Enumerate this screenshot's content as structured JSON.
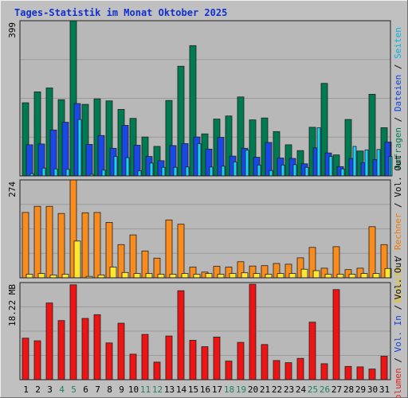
{
  "chart_data": {
    "type": "bar",
    "title": "Tages-Statistik im Monat Oktober 2025",
    "categories": [
      "1",
      "2",
      "3",
      "4",
      "5",
      "6",
      "7",
      "8",
      "9",
      "10",
      "11",
      "12",
      "13",
      "14",
      "15",
      "16",
      "17",
      "18",
      "19",
      "20",
      "21",
      "22",
      "23",
      "24",
      "25",
      "26",
      "27",
      "28",
      "29",
      "30",
      "31"
    ],
    "weekend_days": [
      4,
      5,
      11,
      12,
      18,
      19,
      25,
      26
    ],
    "grid": true,
    "panels": [
      {
        "id": "top",
        "ymax": 399,
        "tick_label": "399",
        "right_labels": [
          {
            "text": "Anfragen",
            "color": "#007a50"
          },
          {
            "text": " / ",
            "color": "#0a0a0a"
          },
          {
            "text": "Dateien",
            "color": "#1040e0"
          },
          {
            "text": " / ",
            "color": "#0a0a0a"
          },
          {
            "text": "Seiten",
            "color": "#00b4e6"
          }
        ],
        "series": [
          {
            "name": "Anfragen",
            "color": "#007a50",
            "values": [
              188,
              216,
              226,
              196,
              399,
              184,
              198,
              193,
              171,
              148,
              100,
              76,
              194,
              282,
              335,
              108,
              146,
              154,
              203,
              144,
              149,
              114,
              80,
              65,
              125,
              238,
              54,
              145,
              64,
              210,
              124
            ]
          },
          {
            "name": "Dateien",
            "color": "#1a48e6",
            "values": [
              80,
              82,
              118,
              138,
              186,
              81,
              104,
              71,
              130,
              79,
              50,
              39,
              78,
              83,
              100,
              69,
              99,
              51,
              71,
              48,
              86,
              46,
              45,
              31,
              72,
              59,
              24,
              45,
              34,
              42,
              87
            ]
          },
          {
            "name": "Seiten",
            "color": "#16d2f8",
            "values": [
              6,
              20,
              18,
              17,
              145,
              4,
              15,
              50,
              47,
              13,
              33,
              22,
              22,
              23,
              83,
              23,
              25,
              36,
              66,
              28,
              14,
              28,
              29,
              22,
              124,
              50,
              18,
              76,
              67,
              68,
              50
            ]
          }
        ]
      },
      {
        "id": "middle",
        "ymax": 274,
        "tick_label": "274",
        "right_labels": [
          {
            "text": "Besuche",
            "color": "#e8c800"
          },
          {
            "text": " / ",
            "color": "#0a0a0a"
          },
          {
            "text": "Rechner",
            "color": "#f07800"
          },
          {
            "text": " / ",
            "color": "#0a0a0a"
          },
          {
            "text": "Vol. Out",
            "color": "#0a0a0a"
          }
        ],
        "series": [
          {
            "name": "Rechner",
            "color": "#fa8c1e",
            "values": [
              183,
              200,
              200,
              180,
              274,
              182,
              183,
              155,
              93,
              120,
              75,
              55,
              162,
              150,
              30,
              16,
              32,
              30,
              45,
              33,
              34,
              40,
              38,
              56,
              85,
              27,
              87,
              23,
              27,
              143,
              93
            ]
          },
          {
            "name": "Besuche",
            "color": "#ffe632",
            "values": [
              10,
              12,
              8,
              10,
              103,
              4,
              8,
              30,
              15,
              12,
              12,
              10,
              10,
              12,
              10,
              12,
              10,
              12,
              14,
              12,
              10,
              12,
              12,
              24,
              20,
              10,
              10,
              10,
              12,
              12,
              26
            ]
          },
          {
            "name": "Vol. Out",
            "color": "#1a1a1a",
            "values": [
              0,
              0,
              0,
              0,
              0,
              0,
              0,
              0,
              0,
              0,
              0,
              0,
              0,
              0,
              0,
              0,
              0,
              0,
              0,
              0,
              0,
              0,
              0,
              0,
              0,
              0,
              0,
              0,
              0,
              0,
              0
            ]
          }
        ]
      },
      {
        "id": "bottom",
        "ymax": 18.22,
        "tick_label": "18.22 MB",
        "right_labels": [
          {
            "text": "Volumen",
            "color": "#e02020"
          },
          {
            "text": " / ",
            "color": "#0a0a0a"
          },
          {
            "text": "Vol. In",
            "color": "#1040e0"
          },
          {
            "text": " / ",
            "color": "#0a0a0a"
          },
          {
            "text": "Vol. Out",
            "color": "#0a0a0a"
          }
        ],
        "series": [
          {
            "name": "Volumen",
            "color": "#ee1414",
            "values": [
              7.8,
              7.3,
              14.4,
              11.1,
              17.8,
              11.5,
              12.2,
              6.9,
              10.6,
              4.8,
              8.5,
              3.3,
              8.2,
              16.7,
              7.4,
              6.2,
              8.0,
              3.5,
              7.0,
              17.9,
              6.6,
              3.6,
              3.2,
              4.0,
              10.8,
              3.0,
              16.9,
              2.5,
              2.4,
              2.0,
              4.4
            ]
          }
        ]
      }
    ]
  }
}
